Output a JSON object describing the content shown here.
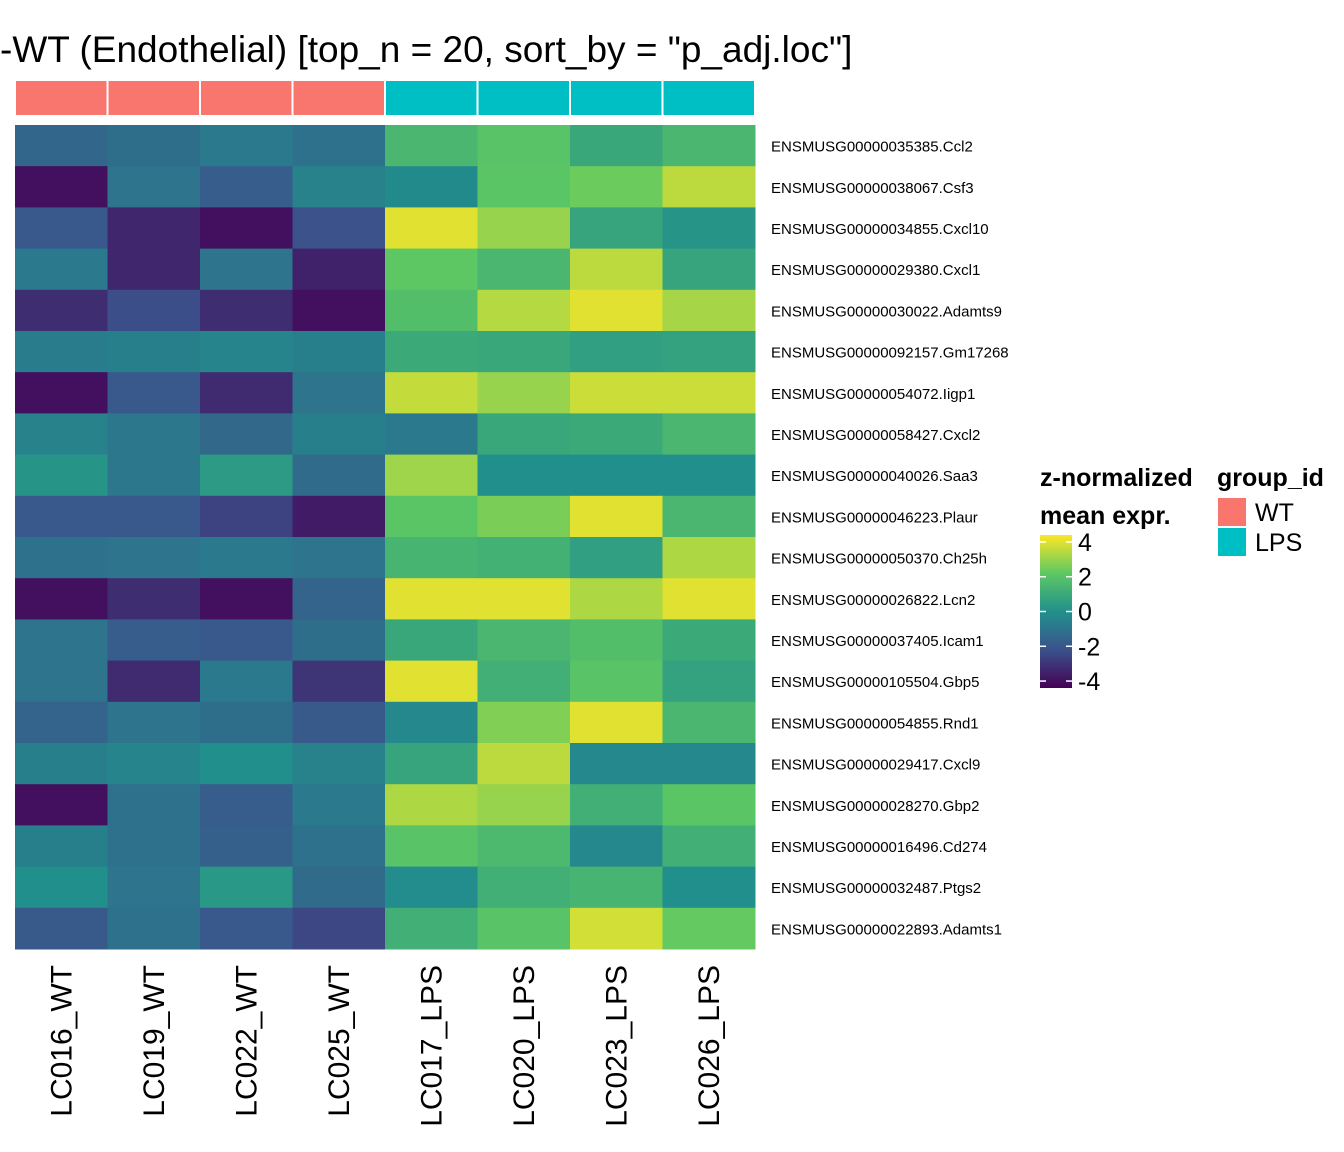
{
  "chart_data": {
    "type": "heatmap",
    "title": "-WT (Endothelial) [top_n = 20, sort_by = \"p_adj.loc\"]",
    "columns": [
      "LC016_WT",
      "LC019_WT",
      "LC022_WT",
      "LC025_WT",
      "LC017_LPS",
      "LC020_LPS",
      "LC023_LPS",
      "LC026_LPS"
    ],
    "column_groups": [
      "WT",
      "WT",
      "WT",
      "WT",
      "LPS",
      "LPS",
      "LPS",
      "LPS"
    ],
    "rows": [
      "ENSMUSG00000035385.Ccl2",
      "ENSMUSG00000038067.Csf3",
      "ENSMUSG00000034855.Cxcl10",
      "ENSMUSG00000029380.Cxcl1",
      "ENSMUSG00000030022.Adamts9",
      "ENSMUSG00000092157.Gm17268",
      "ENSMUSG00000054072.Iigp1",
      "ENSMUSG00000058427.Cxcl2",
      "ENSMUSG00000040026.Saa3",
      "ENSMUSG00000046223.Plaur",
      "ENSMUSG00000050370.Ch25h",
      "ENSMUSG00000026822.Lcn2",
      "ENSMUSG00000037405.Icam1",
      "ENSMUSG00000105504.Gbp5",
      "ENSMUSG00000054855.Rnd1",
      "ENSMUSG00000029417.Cxcl9",
      "ENSMUSG00000028270.Gbp2",
      "ENSMUSG00000016496.Cd274",
      "ENSMUSG00000032487.Ptgs2",
      "ENSMUSG00000022893.Adamts1"
    ],
    "values": [
      [
        -1.5,
        -1.2,
        -0.8,
        -1.1,
        1.5,
        2.0,
        0.9,
        1.5
      ],
      [
        -4.0,
        -1.0,
        -1.8,
        -0.5,
        -0.2,
        2.1,
        2.4,
        3.5
      ],
      [
        -2.0,
        -3.4,
        -4.0,
        -2.2,
        4.0,
        3.0,
        0.8,
        0.2
      ],
      [
        -0.8,
        -3.4,
        -1.0,
        -3.5,
        2.2,
        1.5,
        3.5,
        0.8
      ],
      [
        -3.2,
        -2.3,
        -3.2,
        -4.0,
        1.8,
        3.4,
        4.0,
        3.2
      ],
      [
        -0.7,
        -0.6,
        -0.4,
        -0.6,
        1.0,
        0.9,
        0.6,
        0.7
      ],
      [
        -4.0,
        -2.0,
        -3.3,
        -1.0,
        3.6,
        3.0,
        3.7,
        3.7
      ],
      [
        -0.5,
        -0.9,
        -1.4,
        -0.6,
        -0.8,
        0.9,
        1.0,
        1.5
      ],
      [
        0.2,
        -0.9,
        0.4,
        -1.3,
        3.1,
        0.0,
        0.0,
        0.0
      ],
      [
        -2.0,
        -2.0,
        -2.6,
        -3.7,
        2.1,
        2.6,
        4.0,
        1.5
      ],
      [
        -1.1,
        -1.0,
        -0.8,
        -1.0,
        1.4,
        1.3,
        0.6,
        3.3
      ],
      [
        -4.0,
        -3.2,
        -4.0,
        -1.6,
        4.0,
        4.0,
        3.3,
        4.0
      ],
      [
        -1.0,
        -1.8,
        -2.0,
        -1.2,
        0.9,
        1.5,
        1.8,
        1.0
      ],
      [
        -1.0,
        -3.3,
        -0.8,
        -3.0,
        4.0,
        1.2,
        2.0,
        0.7
      ],
      [
        -1.6,
        -1.0,
        -1.2,
        -1.9,
        -0.3,
        2.7,
        4.0,
        1.5
      ],
      [
        -0.6,
        -0.4,
        0.0,
        -0.5,
        0.8,
        3.5,
        -0.3,
        -0.3
      ],
      [
        -4.0,
        -1.1,
        -1.8,
        -0.8,
        3.3,
        3.0,
        1.2,
        2.1
      ],
      [
        -0.6,
        -1.1,
        -1.7,
        -1.1,
        2.0,
        1.6,
        -0.3,
        1.2
      ],
      [
        0.0,
        -1.0,
        0.3,
        -1.3,
        -0.1,
        1.2,
        1.4,
        0.0
      ],
      [
        -1.9,
        -1.1,
        -2.0,
        -2.5,
        1.2,
        2.0,
        3.8,
        2.3
      ]
    ],
    "color_scale": {
      "name": "viridis",
      "stops": [
        "#440154",
        "#3b528b",
        "#21908c",
        "#5dc863",
        "#fde725"
      ],
      "domain": [
        -4.4,
        4.4
      ]
    },
    "legend_expr": {
      "title_line1": "z-normalized",
      "title_line2": "mean expr.",
      "ticks": [
        "4",
        "2",
        "0",
        "-2",
        "-4"
      ],
      "tick_values": [
        4,
        2,
        0,
        -2,
        -4
      ]
    },
    "legend_group": {
      "title": "group_id",
      "entries": [
        {
          "label": "WT",
          "color": "#f8766d"
        },
        {
          "label": "LPS",
          "color": "#00bfc4"
        }
      ]
    }
  }
}
